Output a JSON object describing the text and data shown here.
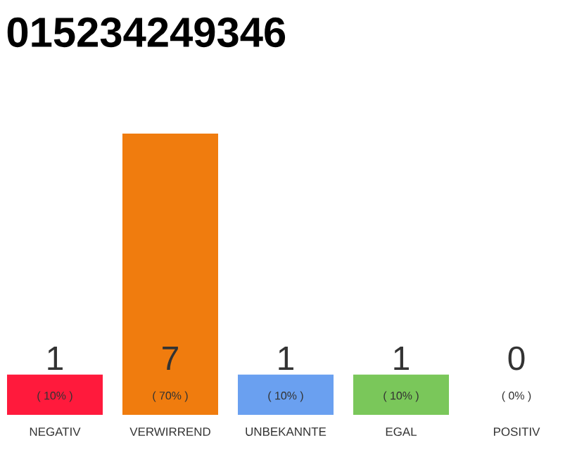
{
  "chart_data": {
    "type": "bar",
    "title": "015234249346",
    "categories": [
      "NEGATIV",
      "VERWIRREND",
      "UNBEKANNTE",
      "EGAL",
      "POSITIV"
    ],
    "values": [
      1,
      7,
      1,
      1,
      0
    ],
    "colors": [
      "#ff1a3c",
      "#f07c0e",
      "#6aa0f0",
      "#7ac75a",
      "#efefef"
    ],
    "annotations": [
      "( 10% )",
      "( 70% )",
      "( 10% )",
      "( 10% )",
      "( 0% )"
    ],
    "data_labels": true,
    "tick_labels": "x"
  }
}
